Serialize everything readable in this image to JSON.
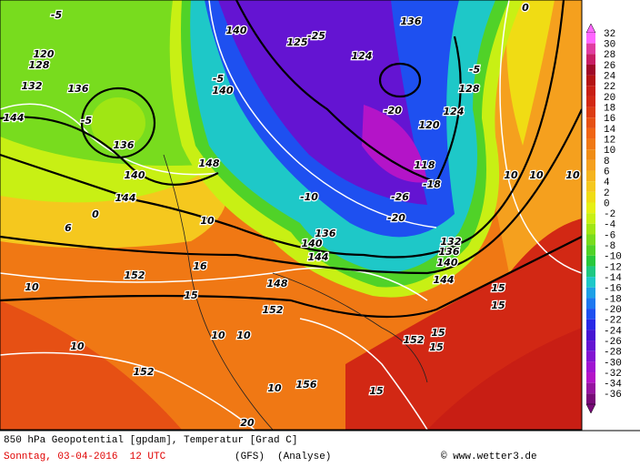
{
  "map": {
    "labels": [
      -5,
      120,
      128,
      132,
      136,
      144,
      -5,
      136,
      140,
      144,
      0,
      6,
      10,
      10,
      152,
      152,
      148,
      140,
      -5,
      140,
      -25,
      125,
      124,
      -20,
      120,
      118,
      -26,
      -18,
      -20,
      132,
      136,
      140,
      144,
      144,
      140,
      136,
      -10,
      152,
      148,
      156,
      152,
      15,
      15,
      15,
      15,
      15,
      10,
      10,
      10,
      0,
      -5,
      128,
      124,
      136,
      10,
      10,
      10,
      16,
      15,
      10,
      20
    ]
  },
  "color_scale": {
    "values": [
      32,
      30,
      28,
      26,
      24,
      22,
      20,
      18,
      16,
      14,
      12,
      10,
      8,
      6,
      4,
      2,
      0,
      -2,
      -4,
      -6,
      -8,
      -10,
      -12,
      -14,
      -16,
      -18,
      -20,
      -22,
      -24,
      -26,
      -28,
      -30,
      -32,
      -34,
      -36
    ],
    "colors": [
      "#ff66ff",
      "#e03ca0",
      "#c81e64",
      "#a00a28",
      "#b41414",
      "#c81e14",
      "#d22814",
      "#dc3c14",
      "#e65014",
      "#f06414",
      "#f07814",
      "#f08c14",
      "#f5a01e",
      "#f5b41e",
      "#f5c81e",
      "#f0dc14",
      "#e6f014",
      "#c8f014",
      "#a0e614",
      "#78dc1e",
      "#50d228",
      "#28c83c",
      "#1ec882",
      "#1ec8c8",
      "#1ea0e6",
      "#1e78f0",
      "#1e50f0",
      "#2828e6",
      "#4614d2",
      "#6414d2",
      "#8214d2",
      "#a014d2",
      "#b414c8",
      "#9614a0",
      "#780a78"
    ]
  },
  "footer": {
    "title": "850 hPa Geopotential [gpdam], Temperatur [Grad C]",
    "date": "Sonntag, 03-04-2016  12 UTC",
    "model": "(GFS)",
    "run": "(Analyse)",
    "source": "© www.wetter3.de"
  }
}
